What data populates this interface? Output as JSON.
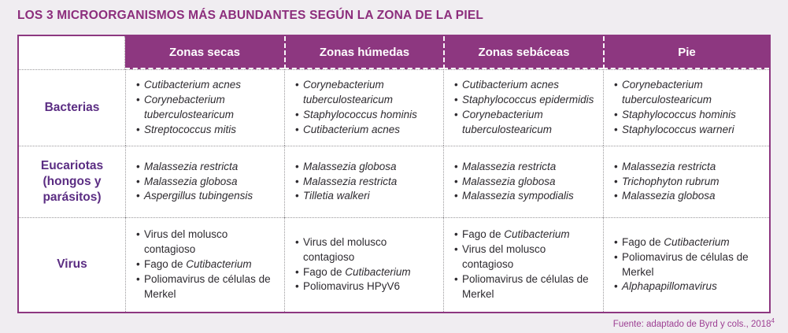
{
  "title": "LOS 3 MICROORGANISMOS MÁS ABUNDANTES SEGÚN LA ZONA DE LA PIEL",
  "table": {
    "corner_label": "",
    "column_headers": [
      "Zonas secas",
      "Zonas húmedas",
      "Zonas sebáceas",
      "Pie"
    ],
    "row_groups": [
      {
        "label": "Bacterias",
        "cells": [
          [
            "*Cutibacterium acnes*",
            "*Corynebacterium tuberculostearicum*",
            "*Streptococcus mitis*"
          ],
          [
            "*Corynebacterium tuberculostearicum*",
            "*Staphylococcus hominis*",
            "*Cutibacterium acnes*"
          ],
          [
            "*Cutibacterium acnes*",
            "*Staphylococcus epidermidis*",
            "*Corynebacterium tuberculostearicum*"
          ],
          [
            "*Corynebacterium tuberculostearicum*",
            "*Staphylococcus hominis*",
            "*Staphylococcus warneri*"
          ]
        ]
      },
      {
        "label": "Eucariotas (hongos y parásitos)",
        "cells": [
          [
            "*Malassezia restricta*",
            "*Malassezia globosa*",
            "*Aspergillus tubingensis*"
          ],
          [
            "*Malassezia globosa*",
            "*Malassezia restricta*",
            "*Tilletia walkeri*"
          ],
          [
            "*Malassezia restricta*",
            "*Malassezia globosa*",
            "*Malassezia sympodialis*"
          ],
          [
            "*Malassezia restricta*",
            "*Trichophyton rubrum*",
            "*Malassezia globosa*"
          ]
        ]
      },
      {
        "label": "Virus",
        "cells": [
          [
            "Virus del molusco contagioso",
            "Fago de *Cutibacterium*",
            "Poliomavirus de células de Merkel"
          ],
          [
            "Virus del molusco contagioso",
            "Fago de *Cutibacterium*",
            "Poliomavirus HPyV6"
          ],
          [
            "Fago de *Cutibacterium*",
            "Virus del molusco contagioso",
            "Poliomavirus de células de Merkel"
          ],
          [
            "Fago de *Cutibacterium*",
            "Poliomavirus de células de Merkel",
            "*Alphapapillomavirus*"
          ]
        ]
      }
    ]
  },
  "footer": {
    "source_text": "Fuente: adaptado de Byrd y cols., 2018",
    "citation_number": "4"
  },
  "colors": {
    "accent_purple": "#8d3780",
    "row_label_purple": "#5b2d83",
    "title_purple": "#8c2d7c",
    "footer_purple": "#9d3f93",
    "page_background": "#f0edf1",
    "body_text": "#2e2b30",
    "dotted_border": "#9a989b"
  }
}
